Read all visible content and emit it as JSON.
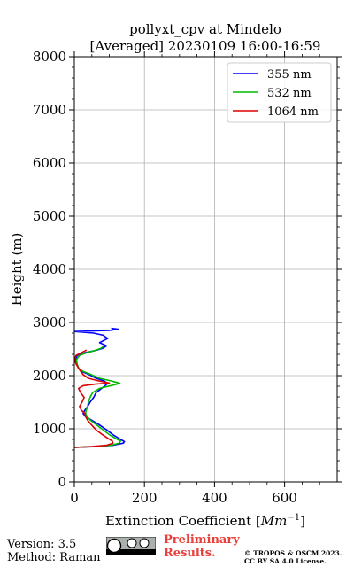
{
  "chart_data": {
    "type": "line",
    "title": "pollyxt_cpv at Mindelo",
    "subtitle": "[Averaged] 20230109 16:00-16:59",
    "xlabel": "Extinction Coefficient [Mm⁻¹]",
    "ylabel": "Height (m)",
    "xlim": [
      0,
      750
    ],
    "ylim": [
      0,
      8000
    ],
    "xticks": [
      "0",
      "200",
      "400",
      "600"
    ],
    "yticks": [
      "0",
      "1000",
      "2000",
      "3000",
      "4000",
      "5000",
      "6000",
      "7000",
      "8000"
    ],
    "grid": true,
    "legend_position": "top-right",
    "series": [
      {
        "name": "355 nm",
        "color": "#0000ff",
        "points": [
          [
            0,
            650
          ],
          [
            60,
            665
          ],
          [
            110,
            690
          ],
          [
            140,
            730
          ],
          [
            143,
            760
          ],
          [
            132,
            800
          ],
          [
            112,
            880
          ],
          [
            92,
            980
          ],
          [
            70,
            1080
          ],
          [
            50,
            1160
          ],
          [
            32,
            1230
          ],
          [
            25,
            1290
          ],
          [
            30,
            1350
          ],
          [
            38,
            1420
          ],
          [
            45,
            1500
          ],
          [
            55,
            1590
          ],
          [
            62,
            1680
          ],
          [
            78,
            1760
          ],
          [
            88,
            1810
          ],
          [
            95,
            1855
          ],
          [
            85,
            1900
          ],
          [
            62,
            1950
          ],
          [
            42,
            2020
          ],
          [
            20,
            2080
          ],
          [
            12,
            2140
          ],
          [
            6,
            2220
          ],
          [
            4,
            2300
          ],
          [
            8,
            2380
          ],
          [
            30,
            2430
          ],
          [
            58,
            2470
          ],
          [
            80,
            2510
          ],
          [
            92,
            2560
          ],
          [
            72,
            2620
          ],
          [
            95,
            2700
          ],
          [
            82,
            2760
          ],
          [
            55,
            2800
          ],
          [
            0,
            2830
          ],
          [
            100,
            2850
          ],
          [
            125,
            2875
          ],
          [
            105,
            2890
          ]
        ]
      },
      {
        "name": "532 nm",
        "color": "#00bb00",
        "points": [
          [
            0,
            650
          ],
          [
            55,
            665
          ],
          [
            105,
            690
          ],
          [
            128,
            730
          ],
          [
            132,
            770
          ],
          [
            120,
            810
          ],
          [
            102,
            880
          ],
          [
            82,
            980
          ],
          [
            62,
            1080
          ],
          [
            46,
            1160
          ],
          [
            36,
            1230
          ],
          [
            32,
            1290
          ],
          [
            34,
            1350
          ],
          [
            38,
            1420
          ],
          [
            40,
            1500
          ],
          [
            45,
            1590
          ],
          [
            52,
            1680
          ],
          [
            72,
            1760
          ],
          [
            110,
            1820
          ],
          [
            130,
            1855
          ],
          [
            105,
            1900
          ],
          [
            72,
            1950
          ],
          [
            48,
            2020
          ],
          [
            25,
            2080
          ],
          [
            12,
            2140
          ],
          [
            8,
            2220
          ],
          [
            6,
            2300
          ],
          [
            15,
            2380
          ],
          [
            35,
            2430
          ],
          [
            58,
            2470
          ],
          [
            75,
            2510
          ],
          [
            85,
            2560
          ]
        ]
      },
      {
        "name": "1064 nm",
        "color": "#dd0000",
        "points": [
          [
            0,
            650
          ],
          [
            50,
            665
          ],
          [
            92,
            690
          ],
          [
            110,
            730
          ],
          [
            108,
            770
          ],
          [
            96,
            820
          ],
          [
            80,
            890
          ],
          [
            62,
            980
          ],
          [
            48,
            1080
          ],
          [
            38,
            1160
          ],
          [
            32,
            1230
          ],
          [
            30,
            1290
          ],
          [
            20,
            1350
          ],
          [
            15,
            1420
          ],
          [
            22,
            1500
          ],
          [
            28,
            1590
          ],
          [
            18,
            1680
          ],
          [
            12,
            1760
          ],
          [
            25,
            1810
          ],
          [
            60,
            1840
          ],
          [
            100,
            1860
          ],
          [
            70,
            1900
          ],
          [
            40,
            1950
          ],
          [
            25,
            2020
          ],
          [
            18,
            2080
          ],
          [
            12,
            2140
          ],
          [
            5,
            2220
          ],
          [
            0,
            2300
          ],
          [
            5,
            2380
          ],
          [
            20,
            2430
          ],
          [
            35,
            2480
          ]
        ]
      }
    ]
  },
  "footer": {
    "version": "Version: 3.5",
    "method": "Method: Raman",
    "preliminary_line1": "Preliminary",
    "preliminary_line2": "Results.",
    "copyright_line1": "© TROPOS & OSCM 2023.",
    "copyright_line2": "CC BY SA 4.0 License."
  }
}
